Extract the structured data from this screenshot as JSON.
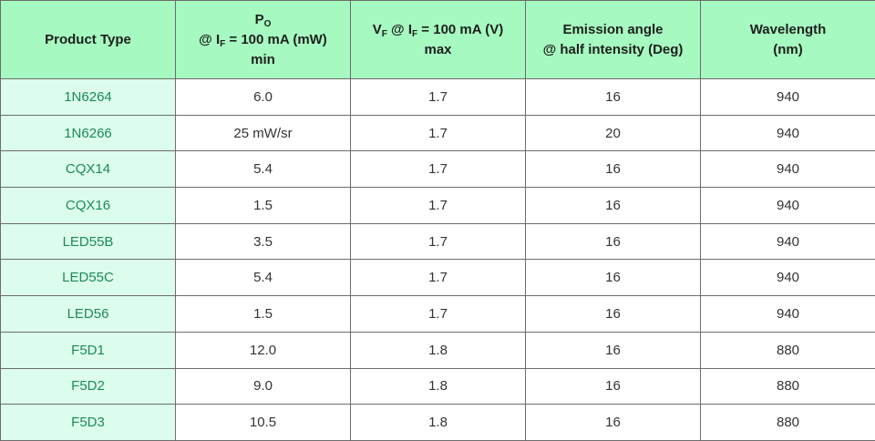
{
  "header": {
    "product_type": "Product Type",
    "po": {
      "sym": "P",
      "sub": "O",
      "line2_pre": "@ I",
      "line2_sub": "F",
      "line2_post": " = 100 mA (mW)",
      "line3": "min"
    },
    "vf": {
      "sym": "V",
      "sub": "F",
      "mid": " @ I",
      "mid_sub": "F",
      "post": " = 100 mA (V)",
      "line2": "max"
    },
    "emission": {
      "line1": "Emission angle",
      "line2": "@ half intensity (Deg)"
    },
    "wavelength": {
      "line1": "Wavelength",
      "line2": "(nm)"
    }
  },
  "rows": [
    {
      "product": "1N6264",
      "po": "6.0",
      "vf": "1.7",
      "angle": "16",
      "wavelength": "940"
    },
    {
      "product": "1N6266",
      "po": "25 mW/sr",
      "vf": "1.7",
      "angle": "20",
      "wavelength": "940"
    },
    {
      "product": "CQX14",
      "po": "5.4",
      "vf": "1.7",
      "angle": "16",
      "wavelength": "940"
    },
    {
      "product": "CQX16",
      "po": "1.5",
      "vf": "1.7",
      "angle": "16",
      "wavelength": "940"
    },
    {
      "product": "LED55B",
      "po": "3.5",
      "vf": "1.7",
      "angle": "16",
      "wavelength": "940"
    },
    {
      "product": "LED55C",
      "po": "5.4",
      "vf": "1.7",
      "angle": "16",
      "wavelength": "940"
    },
    {
      "product": "LED56",
      "po": "1.5",
      "vf": "1.7",
      "angle": "16",
      "wavelength": "940"
    },
    {
      "product": "F5D1",
      "po": "12.0",
      "vf": "1.8",
      "angle": "16",
      "wavelength": "880"
    },
    {
      "product": "F5D2",
      "po": "9.0",
      "vf": "1.8",
      "angle": "16",
      "wavelength": "880"
    },
    {
      "product": "F5D3",
      "po": "10.5",
      "vf": "1.8",
      "angle": "16",
      "wavelength": "880"
    }
  ],
  "colors": {
    "header_bg": "#a6f9c0",
    "product_cell_bg": "#dcfced",
    "product_text": "#1b8a5a",
    "border": "#6d6d6d"
  }
}
